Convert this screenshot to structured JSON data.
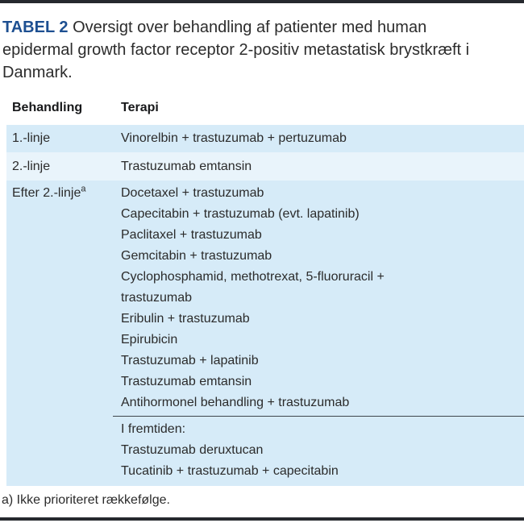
{
  "colors": {
    "accent_blue": "#1d4f91",
    "row_fill": "#d6ebf8",
    "row_fill_alt": "#e9f4fb",
    "rule_dark": "#26292e",
    "divider_line": "#3f464c",
    "text": "#2b2b2b"
  },
  "title": {
    "label": "TABEL 2",
    "text": "Oversigt over behandling af patienter med human epidermal growth factor receptor 2-positiv metastatisk brystkræft i Danmark."
  },
  "table": {
    "headers": {
      "behandling": "Behandling",
      "terapi": "Terapi"
    },
    "rows": [
      {
        "behandling": "1.-linje",
        "terapi": "Vinorelbin + trastuzumab + pertuzumab"
      },
      {
        "behandling": "2.-linje",
        "terapi": "Trastuzumab emtansin"
      }
    ],
    "after_second_line": {
      "behandling": "Efter 2.-linje",
      "behandling_superscript": "a",
      "therapies": [
        "Docetaxel + trastuzumab",
        "Capecitabin + trastuzumab (evt. lapatinib)",
        "Paclitaxel + trastuzumab",
        "Gemcitabin + trastuzumab",
        "Cyclophosphamid, methotrexat, 5-fluoruracil +\ntrastuzumab",
        "Eribulin + trastuzumab",
        "Epirubicin",
        "Trastuzumab + lapatinib",
        "Trastuzumab emtansin",
        "Antihormonel behandling + trastuzumab"
      ],
      "future": {
        "heading": "I fremtiden:",
        "therapies": [
          "Trastuzumab deruxtucan",
          "Tucatinib + trastuzumab + capecitabin"
        ]
      }
    }
  },
  "footnote": "a) Ikke prioriteret rækkefølge."
}
